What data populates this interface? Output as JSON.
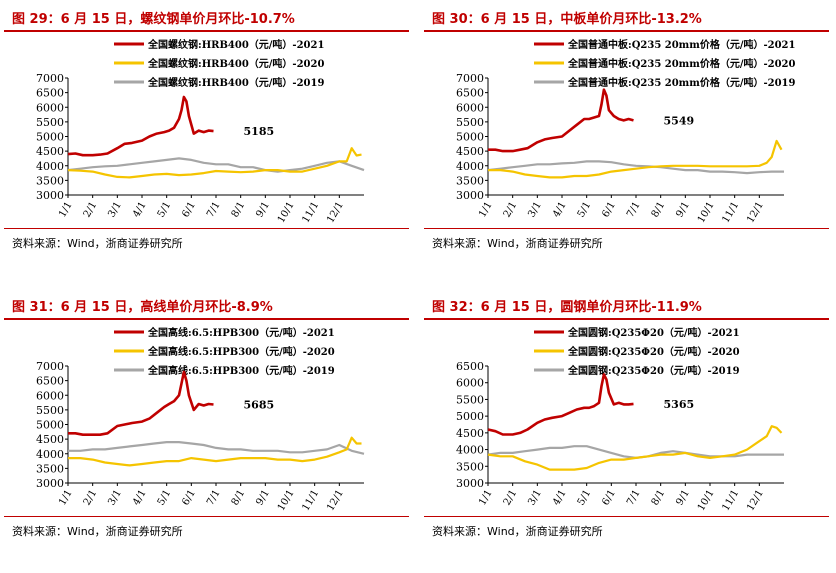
{
  "source_text": "资料来源：Wind，浙商证券研究所",
  "colors": {
    "y2021": "#c00000",
    "y2020": "#f5c400",
    "y2019": "#a6a6a6",
    "title": "#c00000"
  },
  "chart_data": [
    {
      "type": "line",
      "title": "图 29：6 月 15 日，螺纹钢单价月环比-10.7%",
      "ylim": [
        3000,
        7000
      ],
      "yticks": [
        "3000",
        "3500",
        "4000",
        "4500",
        "5000",
        "5500",
        "6000",
        "6500",
        "7000"
      ],
      "xticks": [
        "1/1",
        "2/1",
        "3/1",
        "4/1",
        "5/1",
        "6/1",
        "7/1",
        "8/1",
        "9/1",
        "10/1",
        "11/1",
        "12/1"
      ],
      "annotation": "5185",
      "series": [
        {
          "name": "全国螺纹钢:HRB400（元/吨）-2021",
          "key": "y2021",
          "x": [
            0,
            0.3,
            0.6,
            1,
            1.3,
            1.6,
            2,
            2.3,
            2.6,
            3,
            3.3,
            3.6,
            3.9,
            4.1,
            4.3,
            4.5,
            4.6,
            4.7,
            4.8,
            4.9,
            5.1,
            5.3,
            5.5,
            5.7,
            5.9
          ],
          "values": [
            4400,
            4420,
            4360,
            4360,
            4380,
            4420,
            4600,
            4750,
            4780,
            4860,
            5000,
            5100,
            5150,
            5200,
            5300,
            5600,
            5900,
            6350,
            6200,
            5700,
            5100,
            5200,
            5150,
            5200,
            5185
          ]
        },
        {
          "name": "全国螺纹钢:HRB400（元/吨）-2020",
          "key": "y2020",
          "x": [
            0,
            0.5,
            1,
            1.5,
            2,
            2.5,
            3,
            3.5,
            4,
            4.5,
            5,
            5.5,
            6,
            6.5,
            7,
            7.5,
            8,
            8.5,
            9,
            9.5,
            10,
            10.5,
            11,
            11.3,
            11.5,
            11.7,
            11.9
          ],
          "values": [
            3850,
            3830,
            3800,
            3700,
            3620,
            3600,
            3650,
            3700,
            3720,
            3680,
            3700,
            3750,
            3820,
            3800,
            3780,
            3800,
            3850,
            3850,
            3800,
            3800,
            3900,
            4000,
            4150,
            4150,
            4600,
            4350,
            4380
          ]
        },
        {
          "name": "全国螺纹钢:HRB400（元/吨）-2019",
          "key": "y2019",
          "x": [
            0,
            0.5,
            1,
            1.5,
            2,
            2.5,
            3,
            3.5,
            4,
            4.5,
            5,
            5.5,
            6,
            6.5,
            7,
            7.5,
            8,
            8.5,
            9,
            9.5,
            10,
            10.5,
            11,
            11.5,
            12
          ],
          "values": [
            3850,
            3900,
            3950,
            3980,
            4000,
            4050,
            4100,
            4150,
            4200,
            4250,
            4200,
            4100,
            4050,
            4050,
            3950,
            3950,
            3850,
            3800,
            3850,
            3900,
            4000,
            4100,
            4150,
            4000,
            3850
          ]
        }
      ]
    },
    {
      "type": "line",
      "title": "图 30：6 月 15 日，中板单价月环比-13.2%",
      "ylim": [
        3000,
        7000
      ],
      "yticks": [
        "3000",
        "3500",
        "4000",
        "4500",
        "5000",
        "5500",
        "6000",
        "6500",
        "7000"
      ],
      "xticks": [
        "1/1",
        "2/1",
        "3/1",
        "4/1",
        "5/1",
        "6/1",
        "7/1",
        "8/1",
        "9/1",
        "10/1",
        "11/1",
        "12/1"
      ],
      "annotation": "5549",
      "series": [
        {
          "name": "全国普通中板:Q235 20mm价格（元/吨）-2021",
          "key": "y2021",
          "x": [
            0,
            0.3,
            0.6,
            1,
            1.3,
            1.6,
            2,
            2.3,
            2.6,
            3,
            3.3,
            3.6,
            3.9,
            4.1,
            4.3,
            4.5,
            4.6,
            4.7,
            4.8,
            4.9,
            5.1,
            5.3,
            5.5,
            5.7,
            5.9
          ],
          "values": [
            4550,
            4550,
            4500,
            4500,
            4550,
            4600,
            4800,
            4900,
            4950,
            5000,
            5200,
            5400,
            5600,
            5600,
            5650,
            5700,
            6100,
            6600,
            6400,
            5900,
            5700,
            5600,
            5550,
            5600,
            5549
          ]
        },
        {
          "name": "全国普通中板:Q235 20mm价格（元/吨）-2020",
          "key": "y2020",
          "x": [
            0,
            0.5,
            1,
            1.5,
            2,
            2.5,
            3,
            3.5,
            4,
            4.5,
            5,
            5.5,
            6,
            6.5,
            7,
            7.5,
            8,
            8.5,
            9,
            9.5,
            10,
            10.5,
            11,
            11.3,
            11.5,
            11.7,
            11.9
          ],
          "values": [
            3850,
            3850,
            3800,
            3700,
            3650,
            3600,
            3600,
            3650,
            3650,
            3700,
            3800,
            3850,
            3900,
            3950,
            3980,
            4000,
            4000,
            4000,
            3980,
            3980,
            3980,
            3980,
            4000,
            4100,
            4300,
            4850,
            4550
          ]
        },
        {
          "name": "全国普通中板:Q235 20mm价格（元/吨）-2019",
          "key": "y2019",
          "x": [
            0,
            0.5,
            1,
            1.5,
            2,
            2.5,
            3,
            3.5,
            4,
            4.5,
            5,
            5.5,
            6,
            6.5,
            7,
            7.5,
            8,
            8.5,
            9,
            9.5,
            10,
            10.5,
            11,
            11.5,
            12
          ],
          "values": [
            3850,
            3900,
            3950,
            4000,
            4050,
            4050,
            4080,
            4100,
            4150,
            4150,
            4120,
            4050,
            4000,
            3980,
            3950,
            3900,
            3850,
            3850,
            3800,
            3800,
            3780,
            3750,
            3780,
            3800,
            3800
          ]
        }
      ]
    },
    {
      "type": "line",
      "title": "图 31：6 月 15 日，高线单价月环比-8.9%",
      "ylim": [
        3000,
        7000
      ],
      "yticks": [
        "3000",
        "3500",
        "4000",
        "4500",
        "5000",
        "5500",
        "6000",
        "6500",
        "7000"
      ],
      "xticks": [
        "1/1",
        "2/1",
        "3/1",
        "4/1",
        "5/1",
        "6/1",
        "7/1",
        "8/1",
        "9/1",
        "10/1",
        "11/1",
        "12/1"
      ],
      "annotation": "5685",
      "series": [
        {
          "name": "全国高线:6.5:HPB300（元/吨）-2021",
          "key": "y2021",
          "x": [
            0,
            0.3,
            0.6,
            1,
            1.3,
            1.6,
            2,
            2.3,
            2.6,
            3,
            3.3,
            3.6,
            3.9,
            4.1,
            4.3,
            4.5,
            4.6,
            4.7,
            4.8,
            4.9,
            5.1,
            5.3,
            5.5,
            5.7,
            5.9
          ],
          "values": [
            4700,
            4700,
            4650,
            4650,
            4650,
            4700,
            4950,
            5000,
            5050,
            5100,
            5200,
            5400,
            5600,
            5700,
            5800,
            6000,
            6400,
            6800,
            6500,
            6000,
            5500,
            5700,
            5650,
            5700,
            5685
          ]
        },
        {
          "name": "全国高线:6.5:HPB300（元/吨）-2020",
          "key": "y2020",
          "x": [
            0,
            0.5,
            1,
            1.5,
            2,
            2.5,
            3,
            3.5,
            4,
            4.5,
            5,
            5.5,
            6,
            6.5,
            7,
            7.5,
            8,
            8.5,
            9,
            9.5,
            10,
            10.5,
            11,
            11.3,
            11.5,
            11.7,
            11.9
          ],
          "values": [
            3850,
            3850,
            3800,
            3700,
            3650,
            3600,
            3650,
            3700,
            3750,
            3750,
            3850,
            3800,
            3750,
            3800,
            3850,
            3850,
            3850,
            3800,
            3800,
            3750,
            3800,
            3900,
            4050,
            4150,
            4550,
            4350,
            4350
          ]
        },
        {
          "name": "全国高线:6.5:HPB300（元/吨）-2019",
          "key": "y2019",
          "x": [
            0,
            0.5,
            1,
            1.5,
            2,
            2.5,
            3,
            3.5,
            4,
            4.5,
            5,
            5.5,
            6,
            6.5,
            7,
            7.5,
            8,
            8.5,
            9,
            9.5,
            10,
            10.5,
            11,
            11.5,
            12
          ],
          "values": [
            4100,
            4100,
            4150,
            4150,
            4200,
            4250,
            4300,
            4350,
            4400,
            4400,
            4350,
            4300,
            4200,
            4150,
            4150,
            4100,
            4100,
            4100,
            4050,
            4050,
            4100,
            4150,
            4300,
            4100,
            4000
          ]
        }
      ]
    },
    {
      "type": "line",
      "title": "图 32：6 月 15 日，圆钢单价月环比-11.9%",
      "ylim": [
        3000,
        6500
      ],
      "yticks": [
        "3000",
        "3500",
        "4000",
        "4500",
        "5000",
        "5500",
        "6000",
        "6500"
      ],
      "xticks": [
        "1/1",
        "2/1",
        "3/1",
        "4/1",
        "5/1",
        "6/1",
        "7/1",
        "8/1",
        "9/1",
        "10/1",
        "11/1",
        "12/1"
      ],
      "annotation": "5365",
      "series": [
        {
          "name": "全国圆钢:Q235Φ20（元/吨）-2021",
          "key": "y2021",
          "x": [
            0,
            0.3,
            0.6,
            1,
            1.3,
            1.6,
            2,
            2.3,
            2.6,
            3,
            3.3,
            3.6,
            3.9,
            4.1,
            4.3,
            4.5,
            4.6,
            4.7,
            4.8,
            4.9,
            5.1,
            5.3,
            5.5,
            5.7,
            5.9
          ],
          "values": [
            4600,
            4550,
            4450,
            4450,
            4500,
            4600,
            4800,
            4900,
            4950,
            5000,
            5100,
            5200,
            5250,
            5250,
            5300,
            5400,
            5900,
            6250,
            6100,
            5700,
            5350,
            5400,
            5350,
            5350,
            5365
          ]
        },
        {
          "name": "全国圆钢:Q235Φ20（元/吨）-2020",
          "key": "y2020",
          "x": [
            0,
            0.5,
            1,
            1.5,
            2,
            2.5,
            3,
            3.5,
            4,
            4.5,
            5,
            5.5,
            6,
            6.5,
            7,
            7.5,
            8,
            8.5,
            9,
            9.5,
            10,
            10.5,
            11,
            11.3,
            11.5,
            11.7,
            11.9
          ],
          "values": [
            3850,
            3800,
            3800,
            3650,
            3550,
            3400,
            3400,
            3400,
            3450,
            3600,
            3700,
            3700,
            3750,
            3800,
            3850,
            3850,
            3900,
            3800,
            3750,
            3800,
            3850,
            4000,
            4250,
            4400,
            4700,
            4650,
            4500
          ]
        },
        {
          "name": "全国圆钢:Q235Φ20（元/吨）-2019",
          "key": "y2019",
          "x": [
            0,
            0.5,
            1,
            1.5,
            2,
            2.5,
            3,
            3.5,
            4,
            4.5,
            5,
            5.5,
            6,
            6.5,
            7,
            7.5,
            8,
            8.5,
            9,
            9.5,
            10,
            10.5,
            11,
            11.5,
            12
          ],
          "values": [
            3850,
            3900,
            3900,
            3950,
            4000,
            4050,
            4050,
            4100,
            4100,
            4000,
            3900,
            3800,
            3750,
            3800,
            3900,
            3950,
            3900,
            3850,
            3800,
            3800,
            3800,
            3850,
            3850,
            3850,
            3850
          ]
        }
      ]
    }
  ]
}
